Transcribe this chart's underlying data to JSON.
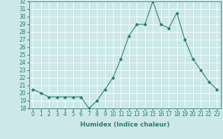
{
  "x": [
    0,
    1,
    2,
    3,
    4,
    5,
    6,
    7,
    8,
    9,
    10,
    11,
    12,
    13,
    14,
    15,
    16,
    17,
    18,
    19,
    20,
    21,
    22,
    23
  ],
  "y": [
    20.5,
    20.0,
    19.5,
    19.5,
    19.5,
    19.5,
    19.5,
    18.0,
    19.0,
    20.5,
    22.0,
    24.5,
    27.5,
    29.0,
    29.0,
    32.0,
    29.0,
    28.5,
    30.5,
    27.0,
    24.5,
    23.0,
    21.5,
    20.5
  ],
  "line_color": "#2e7d6e",
  "marker": "D",
  "marker_size": 1.8,
  "linewidth": 0.8,
  "bg_color": "#cce8e8",
  "grid_color": "#ffffff",
  "xlabel": "Humidex (Indice chaleur)",
  "ylim": [
    18,
    32
  ],
  "xlim": [
    -0.5,
    23.5
  ],
  "yticks": [
    18,
    19,
    20,
    21,
    22,
    23,
    24,
    25,
    26,
    27,
    28,
    29,
    30,
    31,
    32
  ],
  "xticks": [
    0,
    1,
    2,
    3,
    4,
    5,
    6,
    7,
    8,
    9,
    10,
    11,
    12,
    13,
    14,
    15,
    16,
    17,
    18,
    19,
    20,
    21,
    22,
    23
  ],
  "tick_color": "#2e7d6e",
  "label_fontsize": 6.5,
  "tick_fontsize": 5.5
}
